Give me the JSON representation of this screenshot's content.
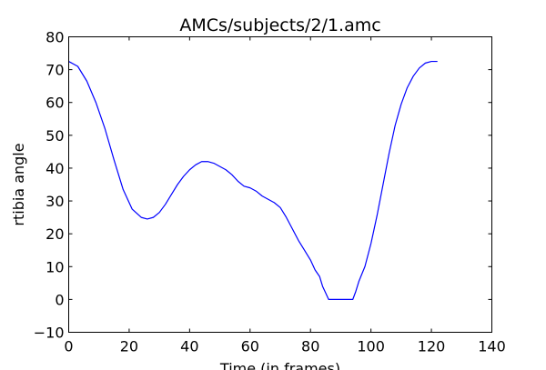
{
  "chart_data": {
    "type": "line",
    "title": "AMCs/subjects/2/1.amc",
    "xlabel": "Time (in frames)",
    "ylabel": "rtibia angle",
    "xlim": [
      0,
      140
    ],
    "ylim": [
      -10,
      80
    ],
    "x_ticks": [
      0,
      20,
      40,
      60,
      80,
      100,
      120,
      140
    ],
    "y_ticks": [
      -10,
      0,
      10,
      20,
      30,
      40,
      50,
      60,
      70,
      80
    ],
    "x_tick_labels": [
      "0",
      "20",
      "40",
      "60",
      "80",
      "100",
      "120",
      "140"
    ],
    "y_tick_labels": [
      "−10",
      "0",
      "10",
      "20",
      "30",
      "40",
      "50",
      "60",
      "70",
      "80"
    ],
    "grid": false,
    "series": [
      {
        "color": "#0000ff",
        "x": [
          0,
          3,
          6,
          9,
          12,
          15,
          18,
          21,
          24,
          26,
          28,
          30,
          32,
          34,
          36,
          38,
          40,
          42,
          44,
          46,
          48,
          50,
          52,
          54,
          56,
          58,
          60,
          62,
          64,
          66,
          68,
          70,
          72,
          74,
          76,
          78,
          80,
          81,
          81.5,
          83,
          84,
          85,
          86,
          90,
          94,
          95,
          96,
          98,
          100,
          102,
          104,
          106,
          108,
          110,
          112,
          114,
          116,
          118,
          120,
          122
        ],
        "y": [
          72.5,
          71,
          66.5,
          60,
          52,
          42.5,
          33.5,
          27.5,
          25,
          24.5,
          25,
          26.5,
          29,
          32,
          35,
          37.5,
          39.5,
          41,
          42,
          42,
          41.5,
          40.5,
          39.5,
          38,
          36,
          34.5,
          34,
          33,
          31.5,
          30.5,
          29.5,
          28,
          25,
          21.5,
          18,
          15,
          12,
          10,
          9,
          7,
          4,
          2,
          0,
          0,
          0,
          2.5,
          5.5,
          10,
          17,
          25.5,
          35,
          44.5,
          53,
          59.5,
          64.5,
          68,
          70.5,
          72,
          72.5,
          72.5
        ]
      }
    ]
  }
}
